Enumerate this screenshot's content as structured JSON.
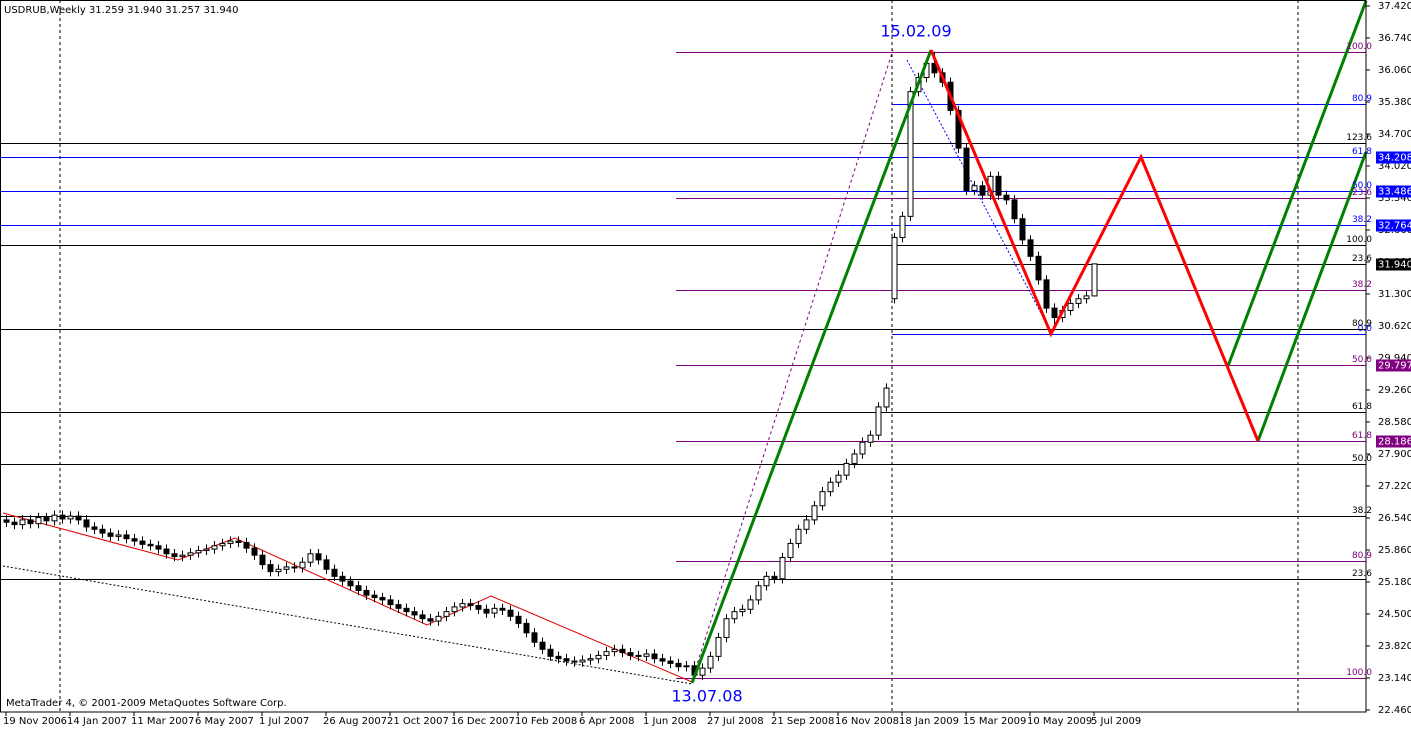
{
  "chart_data": {
    "type": "candlestick",
    "title": "USDRUB,Weekly  31.259 31.940 31.257 31.940",
    "footer": "MetaTrader 4, © 2001-2009 MetaQuotes Software Corp.",
    "annotations": [
      "15.02.09",
      "13.07.08"
    ],
    "bull_color": "#ffffff",
    "bear_color": "#000000",
    "ylim": [
      22.46,
      37.42
    ],
    "yticks": [
      {
        "value": 37.42,
        "label": "37.420"
      },
      {
        "value": 36.74,
        "label": "36.740"
      },
      {
        "value": 36.06,
        "label": "36.060"
      },
      {
        "value": 35.38,
        "label": "35.380"
      },
      {
        "value": 34.7,
        "label": "34.700"
      },
      {
        "value": 34.02,
        "label": "34.020"
      },
      {
        "value": 33.34,
        "label": "33.340"
      },
      {
        "value": 32.66,
        "label": "32.660"
      },
      {
        "value": 31.98,
        "label": "31.980"
      },
      {
        "value": 31.3,
        "label": "31.300"
      },
      {
        "value": 30.62,
        "label": "30.620"
      },
      {
        "value": 29.94,
        "label": "29.940"
      },
      {
        "value": 29.26,
        "label": "29.260"
      },
      {
        "value": 28.58,
        "label": "28.580"
      },
      {
        "value": 27.9,
        "label": "27.900"
      },
      {
        "value": 27.22,
        "label": "27.220"
      },
      {
        "value": 26.54,
        "label": "26.540"
      },
      {
        "value": 25.86,
        "label": "25.860"
      },
      {
        "value": 25.18,
        "label": "25.180"
      },
      {
        "value": 24.5,
        "label": "24.500"
      },
      {
        "value": 23.82,
        "label": "23.820"
      },
      {
        "value": 23.14,
        "label": "23.140"
      },
      {
        "value": 22.46,
        "label": "22.460"
      }
    ],
    "categories": [
      "19 Nov 2006",
      null,
      null,
      null,
      null,
      null,
      null,
      null,
      "14 Jan 2007",
      null,
      null,
      null,
      null,
      null,
      null,
      null,
      "11 Mar 2007",
      null,
      null,
      null,
      null,
      null,
      null,
      null,
      "6 May 2007",
      null,
      null,
      null,
      null,
      null,
      null,
      null,
      "1 Jul 2007",
      null,
      null,
      null,
      null,
      null,
      null,
      null,
      "26 Aug 2007",
      null,
      null,
      null,
      null,
      null,
      null,
      null,
      "21 Oct 2007",
      null,
      null,
      null,
      null,
      null,
      null,
      null,
      "16 Dec 2007",
      null,
      null,
      null,
      null,
      null,
      null,
      null,
      "10 Feb 2008",
      null,
      null,
      null,
      null,
      null,
      null,
      null,
      "6 Apr 2008",
      null,
      null,
      null,
      null,
      null,
      null,
      null,
      "1 Jun 2008",
      null,
      null,
      null,
      null,
      null,
      null,
      null,
      "27 Jul 2008",
      null,
      null,
      null,
      null,
      null,
      null,
      null,
      "21 Sep 2008",
      null,
      null,
      null,
      null,
      null,
      null,
      null,
      "16 Nov 2008",
      null,
      null,
      null,
      null,
      null,
      null,
      null,
      "18 Jan 2009",
      null,
      null,
      null,
      null,
      null,
      null,
      null,
      "15 Mar 2009",
      null,
      null,
      null,
      null,
      null,
      null,
      null,
      "10 May 2009",
      null,
      null,
      null,
      null,
      null,
      null,
      null,
      "5 Jul 2009"
    ],
    "open": [
      26.5,
      26.45,
      26.4,
      26.5,
      26.42,
      26.55,
      26.48,
      26.6,
      26.52,
      26.58,
      26.5,
      26.35,
      26.3,
      26.22,
      26.15,
      26.18,
      26.1,
      26.05,
      25.98,
      25.95,
      25.88,
      25.78,
      25.72,
      25.75,
      25.8,
      25.85,
      25.88,
      25.95,
      26.0,
      26.05,
      26.02,
      25.9,
      25.75,
      25.55,
      25.4,
      25.45,
      25.5,
      25.48,
      25.6,
      25.78,
      25.65,
      25.45,
      25.3,
      25.2,
      25.1,
      25.0,
      24.9,
      24.85,
      24.8,
      24.7,
      24.62,
      24.55,
      24.48,
      24.4,
      24.35,
      24.45,
      24.55,
      24.65,
      24.72,
      24.68,
      24.6,
      24.52,
      24.62,
      24.58,
      24.45,
      24.3,
      24.1,
      23.9,
      23.75,
      23.6,
      23.55,
      23.5,
      23.48,
      23.52,
      23.55,
      23.62,
      23.7,
      23.75,
      23.68,
      23.62,
      23.6,
      23.65,
      23.55,
      23.5,
      23.45,
      23.38,
      23.4,
      23.2,
      23.35,
      23.6,
      24.0,
      24.4,
      24.55,
      24.6,
      24.8,
      25.1,
      25.3,
      25.25,
      25.7,
      26.0,
      26.3,
      26.5,
      26.8,
      27.1,
      27.3,
      27.45,
      27.7,
      27.9,
      28.15,
      28.3,
      28.9,
      31.2,
      32.5,
      32.95,
      35.6,
      35.9,
      36.2,
      36.0,
      35.8,
      35.2,
      34.4,
      33.5,
      33.6,
      33.4,
      33.8,
      33.4,
      33.3,
      32.9,
      32.45,
      32.1,
      31.6,
      31.0,
      30.8,
      30.95,
      31.1,
      31.2,
      31.259
    ],
    "high": [
      26.6,
      26.55,
      26.6,
      26.6,
      26.65,
      26.65,
      26.7,
      26.7,
      26.68,
      26.68,
      26.6,
      26.45,
      26.4,
      26.32,
      26.28,
      26.28,
      26.2,
      26.15,
      26.08,
      26.05,
      25.98,
      25.88,
      25.85,
      25.9,
      25.95,
      25.98,
      26.05,
      26.1,
      26.15,
      26.15,
      26.12,
      26.0,
      25.85,
      25.65,
      25.55,
      25.6,
      25.6,
      25.7,
      25.88,
      25.88,
      25.75,
      25.55,
      25.4,
      25.3,
      25.2,
      25.1,
      25.0,
      24.95,
      24.9,
      24.8,
      24.72,
      24.65,
      24.58,
      24.5,
      24.55,
      24.65,
      24.75,
      24.82,
      24.82,
      24.78,
      24.7,
      24.72,
      24.72,
      24.68,
      24.55,
      24.4,
      24.2,
      24.0,
      23.85,
      23.7,
      23.65,
      23.6,
      23.62,
      23.65,
      23.72,
      23.8,
      23.85,
      23.85,
      23.78,
      23.72,
      23.75,
      23.75,
      23.65,
      23.6,
      23.55,
      23.5,
      23.5,
      23.45,
      23.7,
      24.1,
      24.5,
      24.65,
      24.7,
      24.9,
      25.2,
      25.4,
      25.4,
      25.8,
      26.1,
      26.4,
      26.6,
      26.9,
      27.2,
      27.4,
      27.55,
      27.8,
      28.0,
      28.25,
      28.4,
      29.0,
      29.4,
      32.6,
      33.05,
      35.7,
      36.0,
      36.3,
      36.45,
      36.1,
      35.9,
      35.3,
      34.5,
      33.7,
      33.7,
      33.9,
      33.9,
      33.5,
      33.4,
      33.0,
      32.55,
      32.2,
      31.7,
      31.1,
      31.05,
      31.2,
      31.3,
      31.36,
      31.94
    ],
    "low": [
      26.35,
      26.3,
      26.3,
      26.32,
      26.32,
      26.38,
      26.38,
      26.42,
      26.42,
      26.4,
      26.25,
      26.2,
      26.12,
      26.05,
      26.05,
      26.0,
      25.95,
      25.88,
      25.85,
      25.78,
      25.68,
      25.62,
      25.62,
      25.65,
      25.7,
      25.75,
      25.78,
      25.85,
      25.9,
      25.92,
      25.8,
      25.65,
      25.45,
      25.3,
      25.3,
      25.35,
      25.38,
      25.38,
      25.5,
      25.55,
      25.35,
      25.2,
      25.1,
      25.0,
      24.9,
      24.8,
      24.75,
      24.7,
      24.6,
      24.52,
      24.45,
      24.38,
      24.3,
      24.25,
      24.25,
      24.35,
      24.45,
      24.55,
      24.58,
      24.5,
      24.42,
      24.42,
      24.48,
      24.35,
      24.2,
      24.0,
      23.8,
      23.65,
      23.5,
      23.45,
      23.4,
      23.38,
      23.38,
      23.42,
      23.45,
      23.52,
      23.6,
      23.58,
      23.52,
      23.5,
      23.5,
      23.45,
      23.4,
      23.35,
      23.28,
      23.28,
      23.14,
      23.1,
      23.25,
      23.5,
      23.9,
      24.3,
      24.45,
      24.5,
      24.7,
      25.0,
      25.15,
      25.15,
      25.6,
      25.9,
      26.2,
      26.4,
      26.7,
      27.0,
      27.2,
      27.35,
      27.6,
      27.8,
      28.05,
      28.2,
      28.8,
      31.1,
      32.4,
      32.85,
      35.5,
      35.8,
      35.9,
      35.7,
      35.1,
      34.3,
      33.4,
      33.4,
      33.3,
      33.3,
      33.3,
      33.2,
      32.8,
      32.35,
      32.0,
      31.5,
      30.9,
      30.52,
      30.7,
      30.85,
      31.0,
      31.1,
      31.257
    ],
    "close": [
      26.45,
      26.4,
      26.5,
      26.42,
      26.55,
      26.48,
      26.6,
      26.52,
      26.58,
      26.5,
      26.35,
      26.3,
      26.22,
      26.15,
      26.18,
      26.1,
      26.05,
      25.98,
      25.95,
      25.88,
      25.78,
      25.72,
      25.75,
      25.8,
      25.85,
      25.88,
      25.95,
      26.0,
      26.05,
      26.02,
      25.9,
      25.75,
      25.55,
      25.4,
      25.45,
      25.5,
      25.48,
      25.6,
      25.78,
      25.65,
      25.45,
      25.3,
      25.2,
      25.1,
      25.0,
      24.9,
      24.85,
      24.8,
      24.7,
      24.62,
      24.55,
      24.48,
      24.4,
      24.35,
      24.45,
      24.55,
      24.65,
      24.72,
      24.68,
      24.6,
      24.52,
      24.62,
      24.58,
      24.45,
      24.3,
      24.1,
      23.9,
      23.75,
      23.6,
      23.55,
      23.5,
      23.48,
      23.52,
      23.55,
      23.62,
      23.7,
      23.75,
      23.68,
      23.62,
      23.6,
      23.65,
      23.55,
      23.5,
      23.45,
      23.38,
      23.4,
      23.2,
      23.35,
      23.6,
      24.0,
      24.4,
      24.55,
      24.6,
      24.8,
      25.1,
      25.3,
      25.25,
      25.7,
      26.0,
      26.3,
      26.5,
      26.8,
      27.1,
      27.3,
      27.45,
      27.7,
      27.9,
      28.15,
      28.3,
      28.9,
      29.3,
      32.5,
      32.95,
      35.6,
      35.9,
      36.2,
      36.0,
      35.8,
      35.2,
      34.4,
      33.5,
      33.6,
      33.4,
      33.8,
      33.4,
      33.3,
      32.9,
      32.45,
      32.1,
      31.6,
      31.0,
      30.8,
      30.95,
      31.1,
      31.2,
      31.26,
      31.94
    ],
    "levels": [
      {
        "label": "100.0",
        "value": 36.45,
        "color": "#800080"
      },
      {
        "label": "80.9",
        "value": 35.34,
        "color": "#0000ff"
      },
      {
        "label": "123.6",
        "value": 34.51,
        "color": "#000000"
      },
      {
        "label": "61.8",
        "value": 34.208,
        "value_label": "34.208",
        "color": "#0000ff"
      },
      {
        "label": "50.0",
        "value": 33.486,
        "value_label": "33.486",
        "color": "#0000ff"
      },
      {
        "label": "23.6",
        "value": 33.34,
        "color": "#800080"
      },
      {
        "label": "38.2",
        "value": 32.764,
        "value_label": "32.764",
        "color": "#0000ff"
      },
      {
        "label": "100.0",
        "value": 32.34,
        "color": "#000000"
      },
      {
        "label": "23.6",
        "value": 31.94,
        "value_label": "31.940",
        "color": "#000000"
      },
      {
        "label": "38.2",
        "value": 31.39,
        "color": "#800080"
      },
      {
        "label": "80.9",
        "value": 30.56,
        "color": "#000000"
      },
      {
        "label": "0.0",
        "value": 30.45,
        "color": "#0000ff"
      },
      {
        "label": "50.0",
        "value": 29.797,
        "value_label": "29.797",
        "color": "#800080"
      },
      {
        "label": "61.8",
        "value": 28.79,
        "color": "#000000"
      },
      {
        "label": "61.8",
        "value": 28.186,
        "value_label": "28.186",
        "color": "#800080"
      },
      {
        "label": "50.0",
        "value": 27.69,
        "color": "#000000"
      },
      {
        "label": "38.2",
        "value": 26.58,
        "color": "#000000"
      },
      {
        "label": "80.9",
        "value": 25.63,
        "color": "#800080"
      },
      {
        "label": "23.6",
        "value": 25.24,
        "color": "#000000"
      },
      {
        "label": "100.0",
        "value": 23.14,
        "color": "#800080"
      }
    ]
  }
}
